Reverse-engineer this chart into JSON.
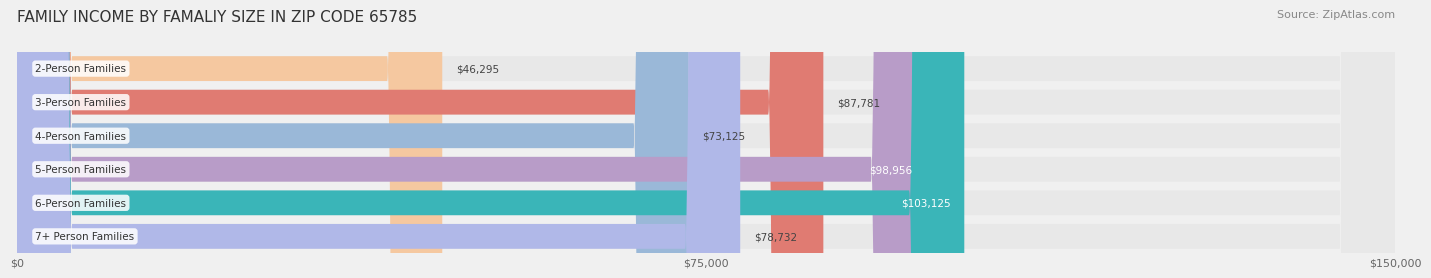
{
  "title": "FAMILY INCOME BY FAMALIY SIZE IN ZIP CODE 65785",
  "source": "Source: ZipAtlas.com",
  "categories": [
    "2-Person Families",
    "3-Person Families",
    "4-Person Families",
    "5-Person Families",
    "6-Person Families",
    "7+ Person Families"
  ],
  "values": [
    46295,
    87781,
    73125,
    98956,
    103125,
    78732
  ],
  "bar_colors": [
    "#f5c8a0",
    "#e07b72",
    "#9ab8d8",
    "#b89cc8",
    "#3ab5b8",
    "#b0b8e8"
  ],
  "label_colors": [
    "#555555",
    "#555555",
    "#555555",
    "#ffffff",
    "#ffffff",
    "#555555"
  ],
  "xlim": [
    0,
    150000
  ],
  "xtick_values": [
    0,
    75000,
    150000
  ],
  "xtick_labels": [
    "$0",
    "$75,000",
    "$150,000"
  ],
  "background_color": "#f0f0f0",
  "bar_bg_color": "#e8e8e8",
  "title_fontsize": 11,
  "source_fontsize": 8,
  "label_fontsize": 7.5,
  "value_fontsize": 7.5,
  "tick_fontsize": 8
}
